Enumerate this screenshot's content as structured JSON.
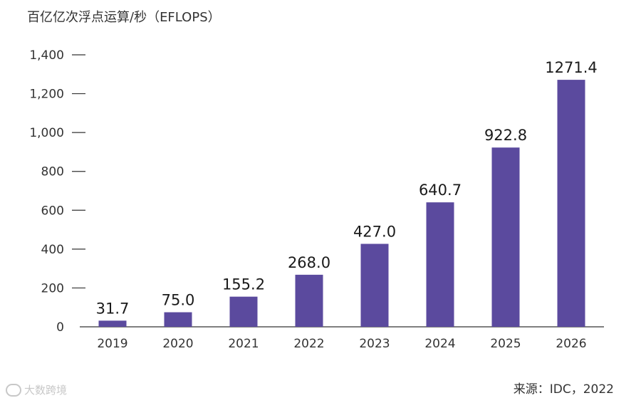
{
  "chart_data": {
    "type": "bar",
    "title": "",
    "ylabel": "百亿亿次浮点运算/秒（EFLOPS）",
    "xlabel": "",
    "categories": [
      "2019",
      "2020",
      "2021",
      "2022",
      "2023",
      "2024",
      "2025",
      "2026"
    ],
    "values": [
      31.7,
      75.0,
      155.2,
      268.0,
      427.0,
      640.7,
      922.8,
      1271.4
    ],
    "data_labels": [
      "31.7",
      "75.0",
      "155.2",
      "268.0",
      "427.0",
      "640.7",
      "922.8",
      "1271.4"
    ],
    "ylim": [
      0,
      1400
    ],
    "yticks": [
      0,
      200,
      400,
      600,
      800,
      1000,
      1200,
      1400
    ],
    "ytick_labels": [
      "0",
      "200",
      "400",
      "600",
      "800",
      "1,000",
      "1,200",
      "1,400"
    ],
    "grid": false,
    "legend": "none",
    "bar_color": "#5b4a9e"
  },
  "source": "来源：IDC，2022",
  "watermark": "大数跨境"
}
